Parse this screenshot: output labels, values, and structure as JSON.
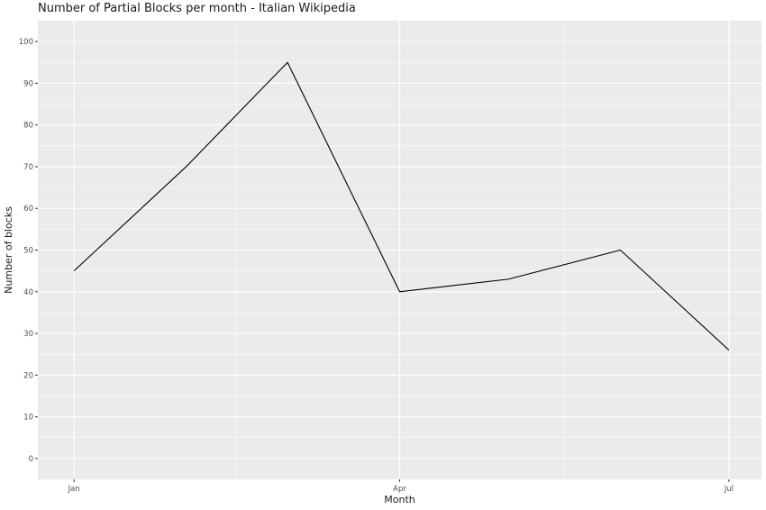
{
  "chart_data": {
    "type": "line",
    "title": "Number of Partial Blocks per month - Italian Wikipedia",
    "xlabel": "Month",
    "ylabel": "Number of blocks",
    "x": [
      "2019-01-01",
      "2019-02-01",
      "2019-03-01",
      "2019-04-01",
      "2019-05-01",
      "2019-06-01",
      "2019-07-01"
    ],
    "values": [
      45,
      70,
      95,
      40,
      43,
      50,
      26
    ],
    "x_ticks": [
      {
        "date": "2019-01-01",
        "label": "Jan"
      },
      {
        "date": "2019-04-01",
        "label": "Apr"
      },
      {
        "date": "2019-07-01",
        "label": "Jul"
      }
    ],
    "y_ticks": [
      0,
      10,
      20,
      30,
      40,
      50,
      60,
      70,
      80,
      90,
      100
    ],
    "ylim": [
      -5,
      105
    ],
    "xlim": [
      "2018-12-22",
      "2019-07-10"
    ],
    "grid": true,
    "line_color": "#000000",
    "panel_background": "#ebebeb",
    "gridline_color": "#ffffff"
  }
}
